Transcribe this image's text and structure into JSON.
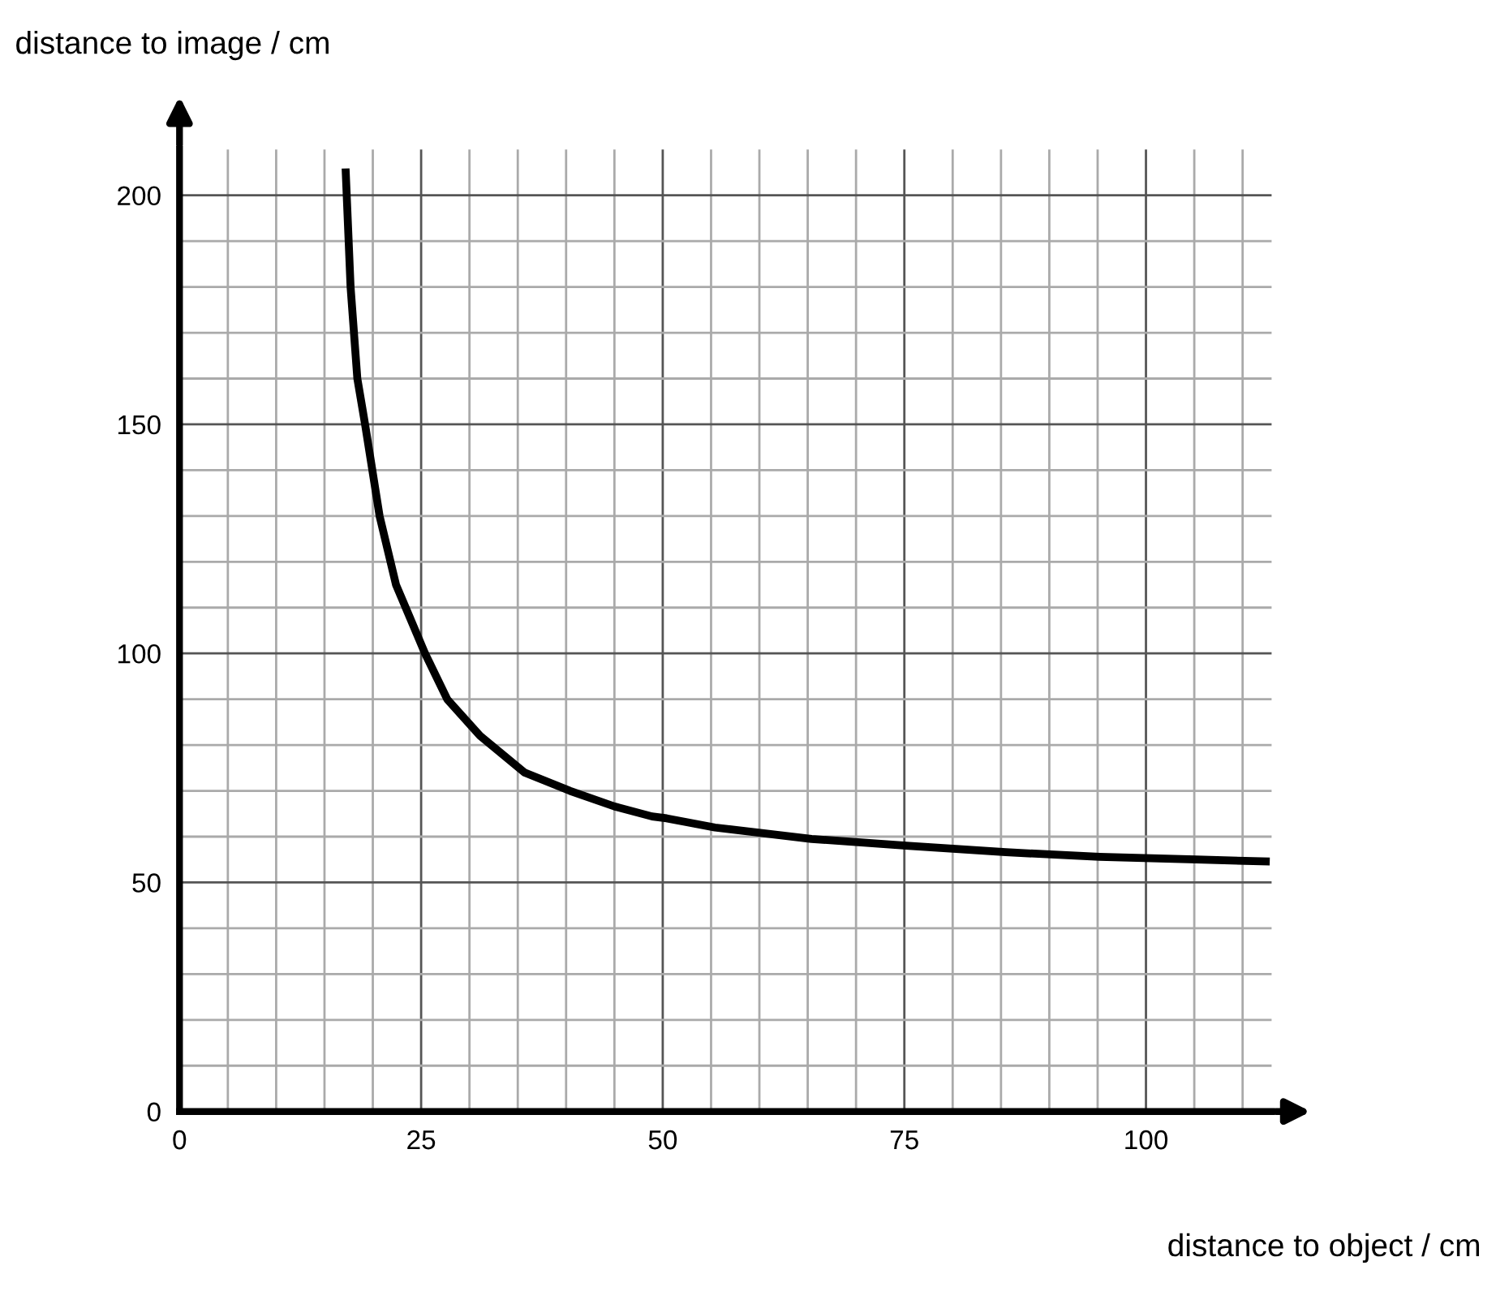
{
  "chart_data": {
    "type": "line",
    "xlabel": "distance to object / cm",
    "ylabel": "distance to image / cm",
    "series": [
      {
        "color": "#000000",
        "x": [
          17.2,
          17.7,
          18.4,
          19.2,
          20.7,
          22.4,
          25.4,
          27.7,
          31.1,
          35.7,
          40.4,
          45,
          48.9,
          50.4,
          55.4,
          65.4,
          75.5,
          85.5,
          95.2,
          105.2,
          112.4
        ],
        "values": [
          205,
          180,
          160,
          150,
          130,
          115,
          100,
          90,
          82,
          74,
          70,
          66.6,
          64.4,
          64,
          62,
          59.5,
          58,
          56.6,
          55.6,
          55,
          54.6
        ]
      }
    ],
    "xlim": [
      0,
      113
    ],
    "ylim": [
      0,
      210
    ],
    "xticks": [
      0,
      25,
      50,
      75,
      100
    ],
    "yticks": [
      0,
      50,
      100,
      150,
      200
    ],
    "grid": true,
    "marker": "none",
    "line_style": "solid",
    "legend": false
  }
}
